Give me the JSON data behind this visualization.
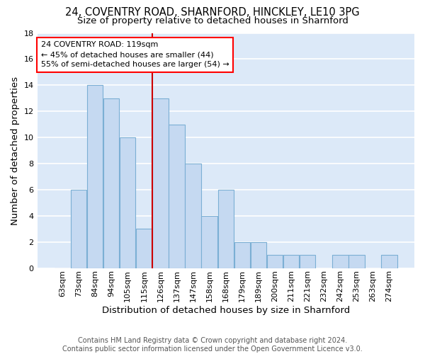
{
  "categories": [
    "63sqm",
    "73sqm",
    "84sqm",
    "94sqm",
    "105sqm",
    "115sqm",
    "126sqm",
    "137sqm",
    "147sqm",
    "158sqm",
    "168sqm",
    "179sqm",
    "189sqm",
    "200sqm",
    "211sqm",
    "221sqm",
    "232sqm",
    "242sqm",
    "253sqm",
    "263sqm",
    "274sqm"
  ],
  "values": [
    0,
    6,
    14,
    13,
    10,
    3,
    13,
    11,
    8,
    4,
    6,
    2,
    2,
    1,
    1,
    1,
    0,
    1,
    1,
    0,
    1
  ],
  "bar_color": "#c5d9f1",
  "bar_edge_color": "#7bafd4",
  "title1": "24, COVENTRY ROAD, SHARNFORD, HINCKLEY, LE10 3PG",
  "title2": "Size of property relative to detached houses in Sharnford",
  "xlabel": "Distribution of detached houses by size in Sharnford",
  "ylabel": "Number of detached properties",
  "ylim": [
    0,
    18
  ],
  "yticks": [
    0,
    2,
    4,
    6,
    8,
    10,
    12,
    14,
    16,
    18
  ],
  "vline_x_index": 5.5,
  "vline_color": "#cc0000",
  "annotation_line1": "24 COVENTRY ROAD: 119sqm",
  "annotation_line2": "← 45% of detached houses are smaller (44)",
  "annotation_line3": "55% of semi-detached houses are larger (54) →",
  "footer_line1": "Contains HM Land Registry data © Crown copyright and database right 2024.",
  "footer_line2": "Contains public sector information licensed under the Open Government Licence v3.0.",
  "background_color": "#dce9f8",
  "grid_color": "#ffffff",
  "title_fontsize": 10.5,
  "subtitle_fontsize": 9.5,
  "axis_label_fontsize": 9.5,
  "tick_fontsize": 8,
  "annotation_fontsize": 8,
  "footer_fontsize": 7
}
